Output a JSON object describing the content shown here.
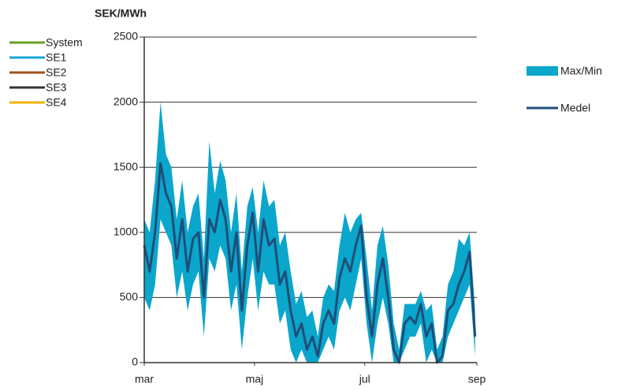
{
  "chart_data": {
    "type": "range",
    "y_label": "SEK/MWh",
    "x": [
      0,
      3,
      6,
      9,
      12,
      15,
      18,
      21,
      24,
      27,
      30,
      33,
      36,
      39,
      42,
      45,
      48,
      51,
      54,
      57,
      60,
      63,
      66,
      69,
      72,
      75,
      78,
      81,
      84,
      87,
      90,
      93,
      96,
      99,
      102,
      105,
      108,
      111,
      114,
      117,
      120,
      123,
      126,
      129,
      132,
      135,
      138,
      141,
      144,
      147,
      150,
      153,
      156,
      159,
      162,
      165,
      168,
      171,
      174,
      177,
      180,
      183
    ],
    "xlim": [
      0,
      184
    ],
    "xticks": [
      {
        "value": 0,
        "label": "mar"
      },
      {
        "value": 61,
        "label": "maj"
      },
      {
        "value": 122,
        "label": "jul"
      },
      {
        "value": 184,
        "label": "sep"
      }
    ],
    "ylim": [
      0,
      2500
    ],
    "yticks": [
      0,
      500,
      1000,
      1500,
      2000,
      2500
    ],
    "grid": true,
    "series": [
      {
        "name": "Max/Min",
        "color": "#0aa6cc",
        "values": [
          1100,
          1000,
          1400,
          2000,
          1600,
          1500,
          1100,
          1400,
          1000,
          1200,
          1300,
          800,
          1700,
          1300,
          1550,
          1400,
          1000,
          1300,
          700,
          1200,
          1350,
          1000,
          1400,
          1200,
          1250,
          900,
          1000,
          700,
          450,
          550,
          350,
          400,
          200,
          500,
          600,
          550,
          900,
          1150,
          1000,
          1100,
          1150,
          800,
          400,
          900,
          1050,
          750,
          300,
          100,
          450,
          450,
          450,
          550,
          400,
          450,
          100,
          200,
          600,
          700,
          950,
          900,
          1000,
          400
        ],
        "low": [
          500,
          400,
          600,
          1100,
          1000,
          900,
          500,
          700,
          400,
          600,
          700,
          200,
          800,
          700,
          900,
          800,
          400,
          600,
          100,
          500,
          800,
          400,
          700,
          600,
          600,
          300,
          400,
          100,
          0,
          100,
          0,
          0,
          0,
          100,
          200,
          100,
          400,
          500,
          400,
          600,
          800,
          300,
          0,
          300,
          500,
          300,
          0,
          0,
          100,
          200,
          200,
          300,
          0,
          100,
          0,
          0,
          200,
          300,
          400,
          500,
          600,
          50
        ]
      },
      {
        "name": "Medel",
        "color": "#1f4e79",
        "values": [
          900,
          700,
          1000,
          1530,
          1300,
          1200,
          800,
          1100,
          700,
          950,
          1000,
          500,
          1100,
          1000,
          1250,
          1100,
          700,
          1000,
          400,
          900,
          1150,
          700,
          1100,
          900,
          950,
          600,
          700,
          400,
          200,
          300,
          100,
          200,
          50,
          300,
          400,
          300,
          650,
          800,
          700,
          900,
          1050,
          500,
          200,
          600,
          800,
          500,
          100,
          0,
          300,
          350,
          300,
          450,
          200,
          300,
          0,
          50,
          400,
          450,
          600,
          700,
          850,
          200
        ]
      }
    ],
    "area_legend": [
      {
        "name": "System",
        "color": "#6aa121"
      },
      {
        "name": "SE1",
        "color": "#1aa7d3"
      },
      {
        "name": "SE2",
        "color": "#a0521a"
      },
      {
        "name": "SE3",
        "color": "#333333"
      },
      {
        "name": "SE4",
        "color": "#f0b400"
      }
    ]
  }
}
